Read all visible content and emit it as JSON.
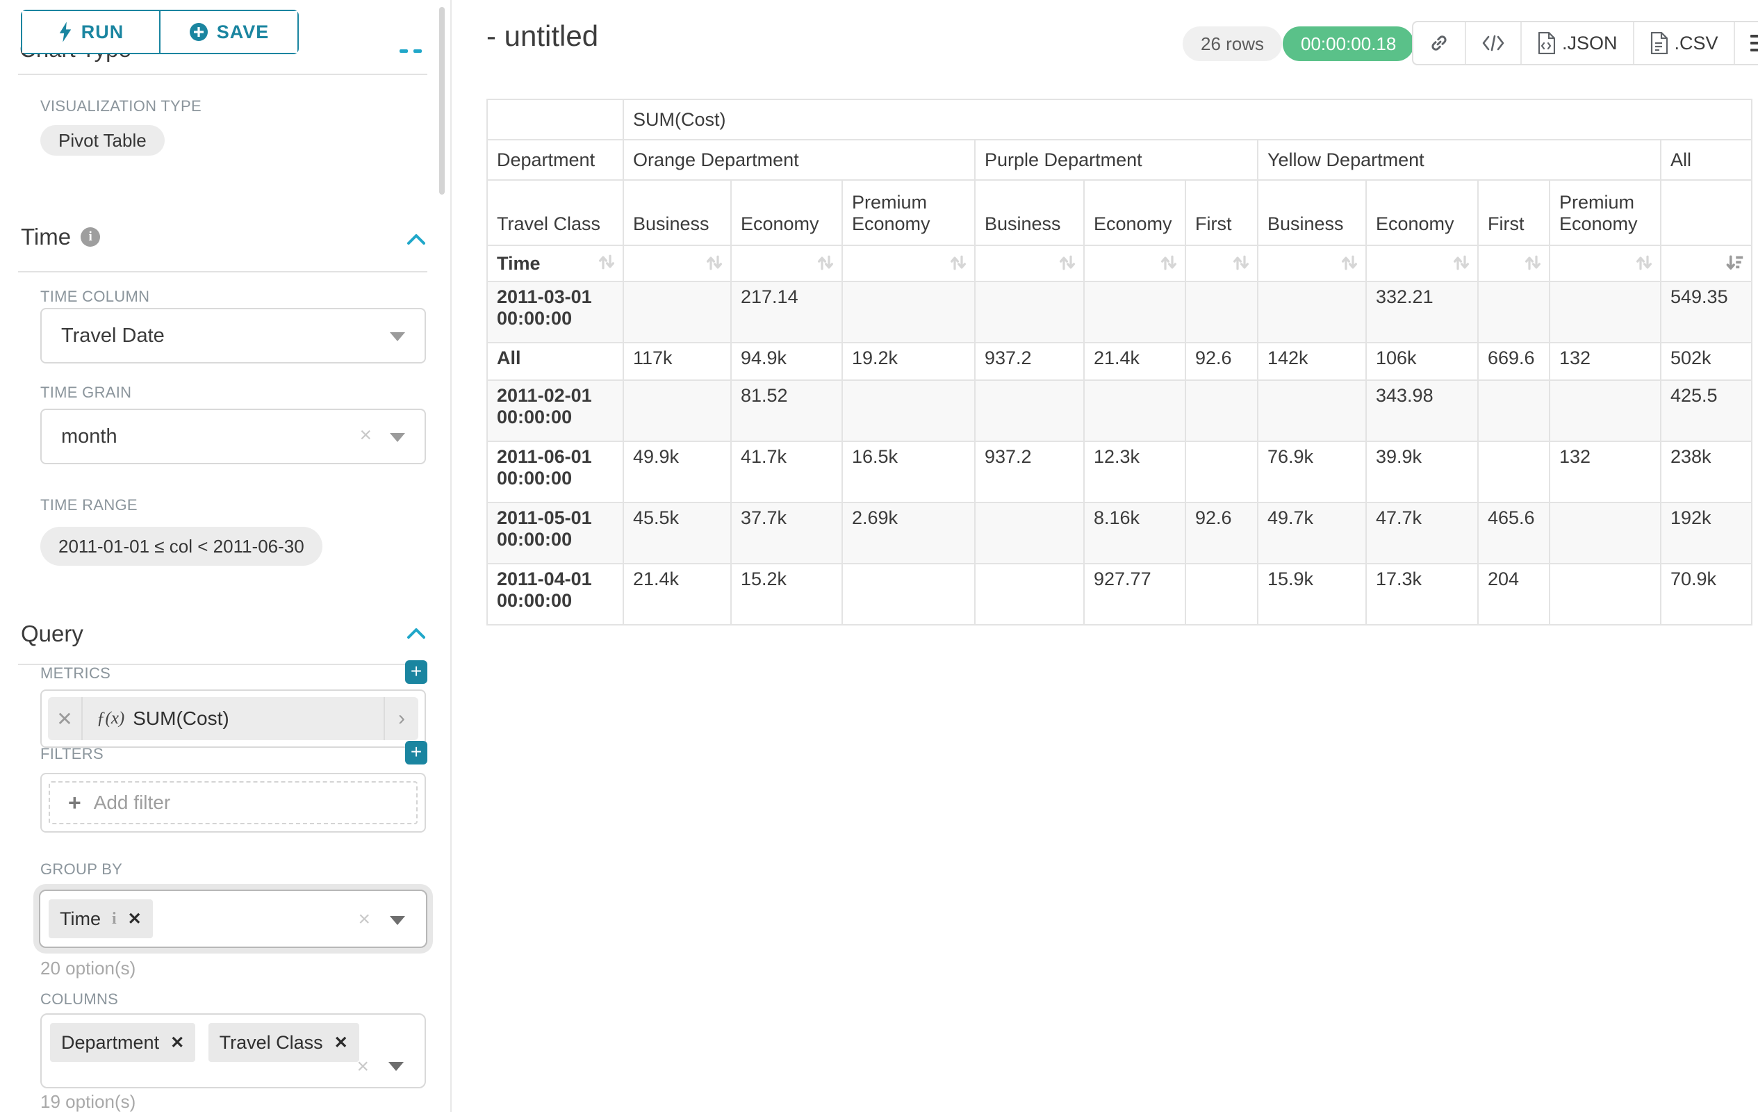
{
  "colors": {
    "accent": "#1a85a0",
    "accent_bright": "#20a7c9",
    "success": "#5ac189"
  },
  "toolbar": {
    "run_label": "RUN",
    "save_label": "SAVE"
  },
  "sidebar": {
    "chart_type_heading": "Chart Type",
    "viz_type_label": "VISUALIZATION TYPE",
    "viz_type_value": "Pivot Table",
    "time_section": {
      "title": "Time",
      "time_column_label": "TIME COLUMN",
      "time_column_value": "Travel Date",
      "time_grain_label": "TIME GRAIN",
      "time_grain_value": "month",
      "time_range_label": "TIME RANGE",
      "time_range_value": "2011-01-01 ≤ col < 2011-06-30"
    },
    "query_section": {
      "title": "Query",
      "metrics_label": "METRICS",
      "metric_fx": "ƒ(x)",
      "metric_value": "SUM(Cost)",
      "filters_label": "FILTERS",
      "add_filter_label": "Add filter",
      "group_by_label": "GROUP BY",
      "group_by_chips": [
        "Time"
      ],
      "group_by_options": "20 option(s)",
      "columns_label": "COLUMNS",
      "columns_chips": [
        "Department",
        "Travel Class"
      ],
      "columns_options": "19 option(s)"
    }
  },
  "header": {
    "title": "- untitled",
    "row_count": "26 rows",
    "timer": "00:00:00.18",
    "export_json_label": ".JSON",
    "export_csv_label": ".CSV"
  },
  "chart_data": {
    "type": "table",
    "metric_header": "SUM(Cost)",
    "row_axis_level1": "Department",
    "row_axis_level2": "Travel Class",
    "row_axis_level3": "Time",
    "column_groups": [
      {
        "label": "Orange Department",
        "columns": [
          "Business",
          "Economy",
          "Premium Economy"
        ]
      },
      {
        "label": "Purple Department",
        "columns": [
          "Business",
          "Economy",
          "First"
        ]
      },
      {
        "label": "Yellow Department",
        "columns": [
          "Business",
          "Economy",
          "First",
          "Premium Economy"
        ]
      },
      {
        "label": "All",
        "columns": [
          ""
        ]
      }
    ],
    "sort": "last-column-descending",
    "rows": [
      {
        "label": "2011-03-01 00:00:00",
        "values": [
          "",
          "217.14",
          "",
          "",
          "",
          "",
          "",
          "332.21",
          "",
          "",
          "549.35"
        ]
      },
      {
        "label": "All",
        "values": [
          "117k",
          "94.9k",
          "19.2k",
          "937.2",
          "21.4k",
          "92.6",
          "142k",
          "106k",
          "669.6",
          "132",
          "502k"
        ]
      },
      {
        "label": "2011-02-01 00:00:00",
        "values": [
          "",
          "81.52",
          "",
          "",
          "",
          "",
          "",
          "343.98",
          "",
          "",
          "425.5"
        ]
      },
      {
        "label": "2011-06-01 00:00:00",
        "values": [
          "49.9k",
          "41.7k",
          "16.5k",
          "937.2",
          "12.3k",
          "",
          "76.9k",
          "39.9k",
          "",
          "132",
          "238k"
        ]
      },
      {
        "label": "2011-05-01 00:00:00",
        "values": [
          "45.5k",
          "37.7k",
          "2.69k",
          "",
          "8.16k",
          "92.6",
          "49.7k",
          "47.7k",
          "465.6",
          "",
          "192k"
        ]
      },
      {
        "label": "2011-04-01 00:00:00",
        "values": [
          "21.4k",
          "15.2k",
          "",
          "",
          "927.77",
          "",
          "15.9k",
          "17.3k",
          "204",
          "",
          "70.9k"
        ]
      }
    ]
  }
}
